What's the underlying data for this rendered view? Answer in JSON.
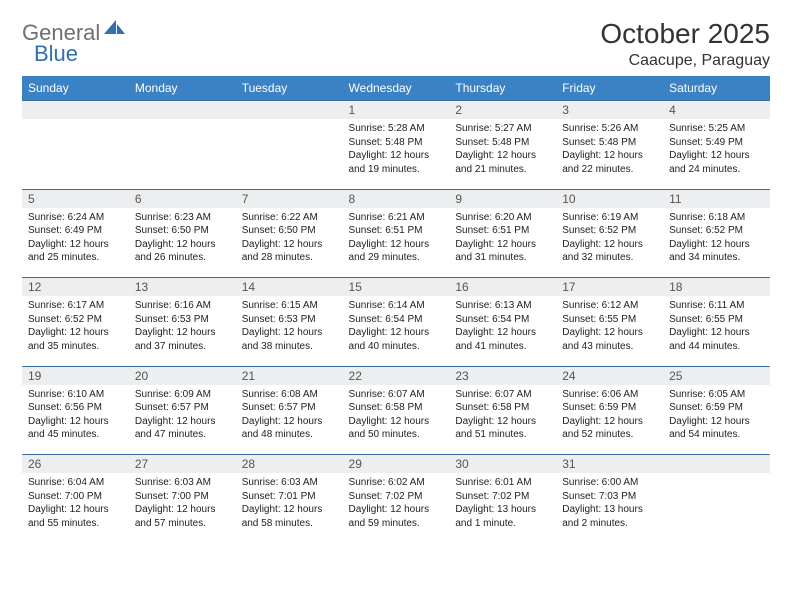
{
  "logo": {
    "text1": "General",
    "text2": "Blue"
  },
  "title": "October 2025",
  "location": "Caacupe, Paraguay",
  "colors": {
    "header_bg": "#3b82c4",
    "header_text": "#ffffff",
    "daynum_bg": "#eceef0",
    "row_border": "#3b6fa0",
    "logo_gray": "#6f6f6f",
    "logo_blue": "#2f6fb3",
    "body_text": "#222222"
  },
  "weekdays": [
    "Sunday",
    "Monday",
    "Tuesday",
    "Wednesday",
    "Thursday",
    "Friday",
    "Saturday"
  ],
  "weeks": [
    [
      null,
      null,
      null,
      {
        "n": "1",
        "sr": "5:28 AM",
        "ss": "5:48 PM",
        "dl": "12 hours and 19 minutes."
      },
      {
        "n": "2",
        "sr": "5:27 AM",
        "ss": "5:48 PM",
        "dl": "12 hours and 21 minutes."
      },
      {
        "n": "3",
        "sr": "5:26 AM",
        "ss": "5:48 PM",
        "dl": "12 hours and 22 minutes."
      },
      {
        "n": "4",
        "sr": "5:25 AM",
        "ss": "5:49 PM",
        "dl": "12 hours and 24 minutes."
      }
    ],
    [
      {
        "n": "5",
        "sr": "6:24 AM",
        "ss": "6:49 PM",
        "dl": "12 hours and 25 minutes."
      },
      {
        "n": "6",
        "sr": "6:23 AM",
        "ss": "6:50 PM",
        "dl": "12 hours and 26 minutes."
      },
      {
        "n": "7",
        "sr": "6:22 AM",
        "ss": "6:50 PM",
        "dl": "12 hours and 28 minutes."
      },
      {
        "n": "8",
        "sr": "6:21 AM",
        "ss": "6:51 PM",
        "dl": "12 hours and 29 minutes."
      },
      {
        "n": "9",
        "sr": "6:20 AM",
        "ss": "6:51 PM",
        "dl": "12 hours and 31 minutes."
      },
      {
        "n": "10",
        "sr": "6:19 AM",
        "ss": "6:52 PM",
        "dl": "12 hours and 32 minutes."
      },
      {
        "n": "11",
        "sr": "6:18 AM",
        "ss": "6:52 PM",
        "dl": "12 hours and 34 minutes."
      }
    ],
    [
      {
        "n": "12",
        "sr": "6:17 AM",
        "ss": "6:52 PM",
        "dl": "12 hours and 35 minutes."
      },
      {
        "n": "13",
        "sr": "6:16 AM",
        "ss": "6:53 PM",
        "dl": "12 hours and 37 minutes."
      },
      {
        "n": "14",
        "sr": "6:15 AM",
        "ss": "6:53 PM",
        "dl": "12 hours and 38 minutes."
      },
      {
        "n": "15",
        "sr": "6:14 AM",
        "ss": "6:54 PM",
        "dl": "12 hours and 40 minutes."
      },
      {
        "n": "16",
        "sr": "6:13 AM",
        "ss": "6:54 PM",
        "dl": "12 hours and 41 minutes."
      },
      {
        "n": "17",
        "sr": "6:12 AM",
        "ss": "6:55 PM",
        "dl": "12 hours and 43 minutes."
      },
      {
        "n": "18",
        "sr": "6:11 AM",
        "ss": "6:55 PM",
        "dl": "12 hours and 44 minutes."
      }
    ],
    [
      {
        "n": "19",
        "sr": "6:10 AM",
        "ss": "6:56 PM",
        "dl": "12 hours and 45 minutes."
      },
      {
        "n": "20",
        "sr": "6:09 AM",
        "ss": "6:57 PM",
        "dl": "12 hours and 47 minutes."
      },
      {
        "n": "21",
        "sr": "6:08 AM",
        "ss": "6:57 PM",
        "dl": "12 hours and 48 minutes."
      },
      {
        "n": "22",
        "sr": "6:07 AM",
        "ss": "6:58 PM",
        "dl": "12 hours and 50 minutes."
      },
      {
        "n": "23",
        "sr": "6:07 AM",
        "ss": "6:58 PM",
        "dl": "12 hours and 51 minutes."
      },
      {
        "n": "24",
        "sr": "6:06 AM",
        "ss": "6:59 PM",
        "dl": "12 hours and 52 minutes."
      },
      {
        "n": "25",
        "sr": "6:05 AM",
        "ss": "6:59 PM",
        "dl": "12 hours and 54 minutes."
      }
    ],
    [
      {
        "n": "26",
        "sr": "6:04 AM",
        "ss": "7:00 PM",
        "dl": "12 hours and 55 minutes."
      },
      {
        "n": "27",
        "sr": "6:03 AM",
        "ss": "7:00 PM",
        "dl": "12 hours and 57 minutes."
      },
      {
        "n": "28",
        "sr": "6:03 AM",
        "ss": "7:01 PM",
        "dl": "12 hours and 58 minutes."
      },
      {
        "n": "29",
        "sr": "6:02 AM",
        "ss": "7:02 PM",
        "dl": "12 hours and 59 minutes."
      },
      {
        "n": "30",
        "sr": "6:01 AM",
        "ss": "7:02 PM",
        "dl": "13 hours and 1 minute."
      },
      {
        "n": "31",
        "sr": "6:00 AM",
        "ss": "7:03 PM",
        "dl": "13 hours and 2 minutes."
      },
      null
    ]
  ],
  "labels": {
    "sunrise": "Sunrise:",
    "sunset": "Sunset:",
    "daylight": "Daylight:"
  }
}
